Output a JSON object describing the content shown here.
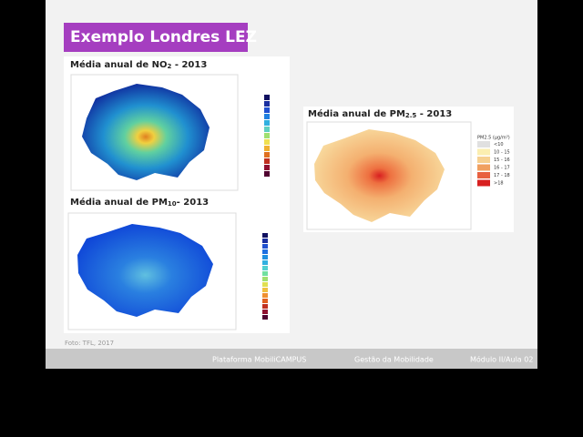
{
  "header": {
    "title": "Exemplo Londres LEZ"
  },
  "panels": [
    {
      "title": {
        "main": "Média anual de NO",
        "sub": "2",
        "tail": " - 2013"
      }
    },
    {
      "title": {
        "main": "Média anual de PM",
        "sub": "10",
        "tail": "- 2013"
      }
    },
    {
      "title": {
        "main": "Média anual de PM",
        "sub": "2.5",
        "tail": " - 2013"
      },
      "legend": {
        "title": "PM2.5 (µg/m³)",
        "items": [
          "<10",
          "10 - 15",
          "15 - 16",
          "16 - 17",
          "17 - 18",
          ">18"
        ]
      }
    }
  ],
  "caption": "Foto: TFL, 2017",
  "footer": [
    "Plataforma MobiliCAMPUS",
    "Gestão da Mobilidade",
    "Módulo II/Aula 02"
  ]
}
